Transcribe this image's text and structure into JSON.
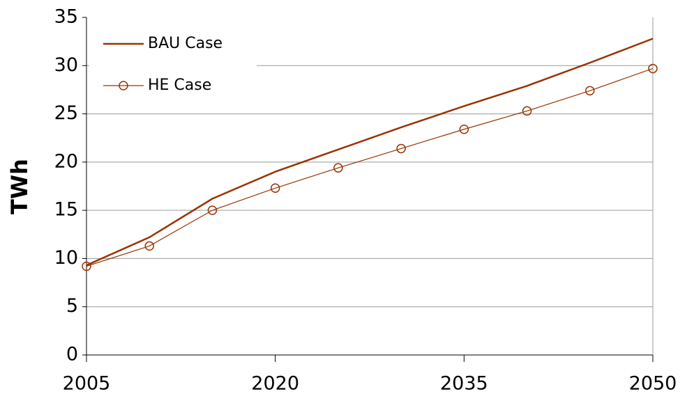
{
  "chart_data": {
    "type": "line",
    "y_label": "TWh",
    "x": [
      2005,
      2010,
      2015,
      2020,
      2025,
      2030,
      2035,
      2040,
      2045,
      2050
    ],
    "series": [
      {
        "name": "BAU Case",
        "color": "#993300",
        "values": [
          9.3,
          12.2,
          16.2,
          19.0,
          21.3,
          23.6,
          25.8,
          27.9,
          30.3,
          32.8
        ]
      },
      {
        "name": "HE Case",
        "color": "#993300",
        "values": [
          9.2,
          11.3,
          15.0,
          17.3,
          19.4,
          21.4,
          23.4,
          25.3,
          27.4,
          29.7
        ]
      }
    ],
    "xlim": [
      2005,
      2050
    ],
    "xticks": [
      2005,
      2020,
      2035,
      2050
    ],
    "ylim": [
      0,
      35
    ],
    "yticks": [
      0,
      5,
      10,
      15,
      20,
      25,
      30,
      35
    ],
    "grid": true,
    "legend": "upper left"
  }
}
